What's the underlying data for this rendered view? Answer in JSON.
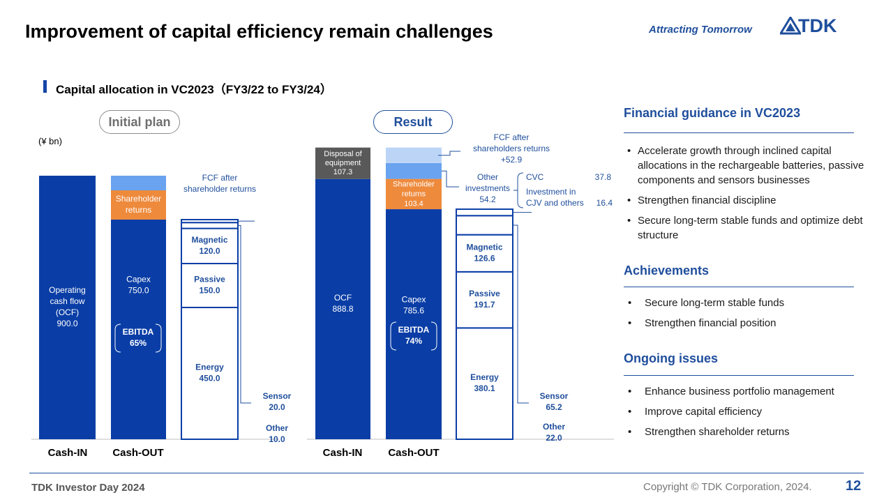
{
  "header": {
    "title": "Improvement of capital efficiency remain challenges",
    "slogan": "Attracting Tomorrow",
    "logo_text": "TDK"
  },
  "section_title": "Capital allocation in VC2023（FY3/22 to FY3/24）",
  "unit": "(¥ bn)",
  "chart_data": [
    {
      "type": "bar",
      "title": "Initial plan",
      "categories": [
        "Cash-IN",
        "Cash-OUT"
      ],
      "stack_values": {
        "cash_in": [
          {
            "label": [
              "Operating",
              "cash flow",
              "(OCF)",
              "900.0"
            ],
            "value": 900.0
          }
        ],
        "cash_out": [
          {
            "label": [
              "Capex",
              "750.0"
            ],
            "value": 750.0
          },
          {
            "label": [
              "Shareholder",
              "returns"
            ],
            "value": 100.0
          },
          {
            "label": [],
            "value": 50.0
          }
        ],
        "capex_breakdown": [
          {
            "label": [
              "Energy",
              "450.0"
            ],
            "value": 450.0
          },
          {
            "label": [
              "Passive",
              "150.0"
            ],
            "value": 150.0
          },
          {
            "label": [
              "Magnetic",
              "120.0"
            ],
            "value": 120.0
          },
          {
            "label": [],
            "value": 20.0
          },
          {
            "label": [],
            "value": 10.0
          }
        ]
      },
      "ebitda": [
        "EBITDA",
        "65%"
      ],
      "annotations": {
        "fcf": [
          "FCF after",
          "shareholder  returns"
        ],
        "sensor": [
          "Sensor",
          "20.0"
        ],
        "other": [
          "Other",
          "10.0"
        ]
      }
    },
    {
      "type": "bar",
      "title": "Result",
      "categories": [
        "Cash-IN",
        "Cash-OUT"
      ],
      "stack_values": {
        "cash_in": [
          {
            "label": [
              "OCF",
              "888.8"
            ],
            "value": 888.8
          },
          {
            "label": [
              "Disposal of",
              "equipment",
              "107.3"
            ],
            "value": 107.3
          }
        ],
        "cash_out": [
          {
            "label": [
              "Capex",
              "785.6"
            ],
            "value": 785.6
          },
          {
            "label": [
              "Shareholder",
              "returns",
              "103.4"
            ],
            "value": 103.4
          },
          {
            "label": [],
            "value": 54.2
          },
          {
            "label": [],
            "value": 52.9
          }
        ],
        "capex_breakdown": [
          {
            "label": [
              "Energy",
              "380.1"
            ],
            "value": 380.1
          },
          {
            "label": [
              "Passive",
              "191.7"
            ],
            "value": 191.7
          },
          {
            "label": [
              "Magnetic",
              "126.6"
            ],
            "value": 126.6
          },
          {
            "label": [],
            "value": 65.2
          },
          {
            "label": [],
            "value": 22.0
          }
        ]
      },
      "ebitda": [
        "EBITDA",
        "74%"
      ],
      "annotations": {
        "fcf": [
          "FCF after",
          "shareholders  returns",
          "+52.9"
        ],
        "other_investments": [
          "Other",
          "investments",
          "54.2"
        ],
        "cvc_label": "CVC",
        "cvc_value": "37.8",
        "cjv_label": [
          "Investment  in",
          "CJV and others"
        ],
        "cjv_value": "16.4",
        "sensor": [
          "Sensor",
          "65.2"
        ],
        "other": [
          "Other",
          "22.0"
        ]
      }
    }
  ],
  "colors": {
    "dark_blue": "#0a3ea6",
    "orange": "#ee8a3c",
    "mid_blue": "#6aa3ef",
    "light_blue": "#bcd5f7",
    "gray": "#595959",
    "label_blue": "#1f4e9c"
  },
  "right_panel": {
    "guidance": {
      "heading": "Financial guidance in VC2023",
      "items": [
        "Accelerate growth through  inclined capital allocations in the rechargeable batteries, passive components  and sensors businesses",
        "Strengthen financial discipline",
        "Secure long-term stable funds and optimize debt structure"
      ]
    },
    "achievements": {
      "heading": "Achievements",
      "items": [
        "Secure long-term stable funds",
        "Strengthen financial position"
      ]
    },
    "issues": {
      "heading": "Ongoing issues",
      "items": [
        "Enhance business portfolio management",
        "Improve  capital efficiency",
        "Strengthen shareholder  returns"
      ]
    }
  },
  "footer": {
    "left": "TDK Investor Day 2024",
    "copyright": "Copyright   © TDK Corporation, 2024.",
    "page": "12"
  }
}
